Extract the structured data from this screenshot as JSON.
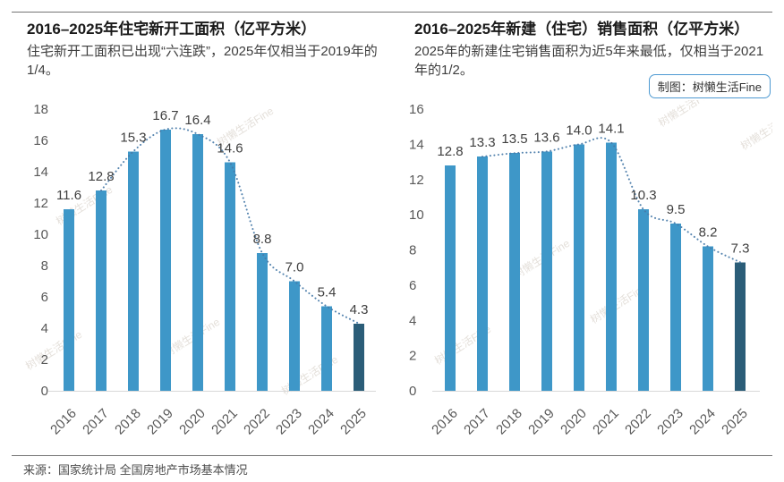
{
  "page": {
    "credit_badge": "制图：树懒生活Fine",
    "source_note": "来源：国家统计局 全国房地产市场基本情况",
    "watermark": "树懒生活Fine"
  },
  "colors": {
    "bar": "#3e97c8",
    "bar_highlight": "#2b5d78",
    "trendline": "#4679a8",
    "axis_line": "#d9d9d9",
    "tick_text": "#595959",
    "value_text": "#3f3f3f",
    "badge_border": "#4e9ad2",
    "rule": "#757575",
    "watermark_text": "#b9ae9f"
  },
  "chart_data": [
    {
      "type": "bar",
      "title": "2016–2025年住宅新开工面积（亿平方米）",
      "subtitle": "住宅新开工面积已出现“六连跌”，2025年仅相当于2019年的1/4。",
      "categories": [
        "2016",
        "2017",
        "2018",
        "2019",
        "2020",
        "2021",
        "2022",
        "2023",
        "2024",
        "2025"
      ],
      "values": [
        11.6,
        12.8,
        15.3,
        16.7,
        16.4,
        14.6,
        8.8,
        7.0,
        5.4,
        4.3
      ],
      "value_labels": [
        "11.6",
        "12.8",
        "15.3",
        "16.7",
        "16.4",
        "14.6",
        "8.8",
        "7.0",
        "5.4",
        "4.3"
      ],
      "ylim": [
        0,
        18
      ],
      "ytick_step": 2,
      "grid": false,
      "legend": "none",
      "data_labels": true,
      "trendline": "dotted",
      "trendline_start_index": 1,
      "highlight_last_bar": true,
      "tick_align": "end"
    },
    {
      "type": "bar",
      "title": "2016–2025年新建（住宅）销售面积（亿平方米）",
      "subtitle": "2025年的新建住宅销售面积为近5年来最低，仅相当于2021年的1/2。",
      "categories": [
        "2016",
        "2017",
        "2018",
        "2019",
        "2020",
        "2021",
        "2022",
        "2023",
        "2024",
        "2025"
      ],
      "values": [
        12.8,
        13.3,
        13.5,
        13.6,
        14.0,
        14.1,
        10.3,
        9.5,
        8.2,
        7.3
      ],
      "value_labels": [
        "12.8",
        "13.3",
        "13.5",
        "13.6",
        "14.0",
        "14.1",
        "10.3",
        "9.5",
        "8.2",
        "7.3"
      ],
      "ylim": [
        0,
        16
      ],
      "ytick_step": 2,
      "grid": false,
      "legend": "none",
      "data_labels": true,
      "trendline": "dotted",
      "trendline_start_index": 1,
      "highlight_last_bar": true,
      "tick_align": "start"
    }
  ]
}
